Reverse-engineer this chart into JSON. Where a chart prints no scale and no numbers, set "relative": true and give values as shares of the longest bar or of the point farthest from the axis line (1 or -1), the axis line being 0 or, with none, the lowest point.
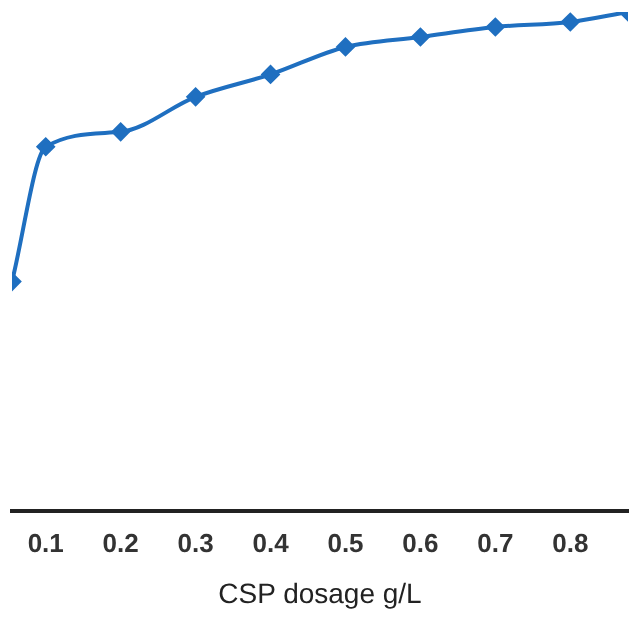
{
  "chart_data": {
    "type": "line",
    "xlabel": "CSP dosage g/L",
    "relative": true,
    "x": [
      0.055,
      0.1,
      0.2,
      0.3,
      0.4,
      0.5,
      0.6,
      0.7,
      0.8,
      0.877
    ],
    "series": [
      {
        "color": "#1f6fc0",
        "values": [
          0.46,
          0.73,
          0.76,
          0.83,
          0.875,
          0.93,
          0.95,
          0.97,
          0.98,
          1
        ]
      }
    ],
    "xlim": [
      0.055,
      0.877
    ],
    "xticks": [
      0.1,
      0.2,
      0.3,
      0.4,
      0.5,
      0.6,
      0.7,
      0.8
    ],
    "marker": "diamond",
    "grid": false,
    "legend": false
  }
}
